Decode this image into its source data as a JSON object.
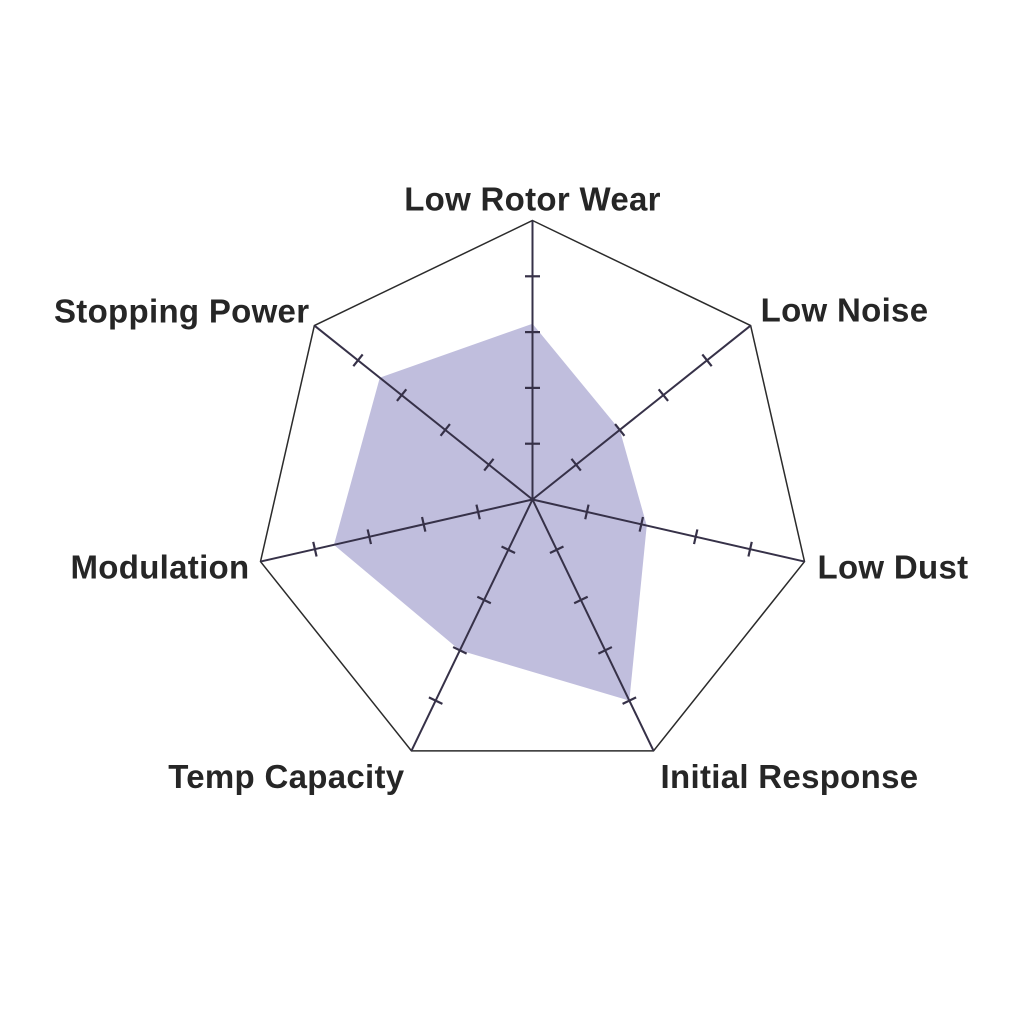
{
  "page": {
    "background_color": "#ffffff"
  },
  "chart_data": {
    "type": "radar",
    "title": "",
    "categories": [
      "Low Rotor Wear",
      "Low Noise",
      "Low Dust",
      "Initial Response",
      "Temp Capacity",
      "Modulation",
      "Stopping Power"
    ],
    "values": [
      3.15,
      2.0,
      2.1,
      4.0,
      3.0,
      3.65,
      3.5
    ],
    "scale_min": 0,
    "scale_max": 5,
    "tick_step": 1,
    "ticks_per_axis": [
      1,
      2,
      3,
      4
    ],
    "grid": "spokes-with-ticks-only",
    "legend": "none",
    "fill_color": "#c0bedd",
    "spoke_color": "#363148",
    "outline_color": "#2b2b2b",
    "label_color": "#262626"
  }
}
